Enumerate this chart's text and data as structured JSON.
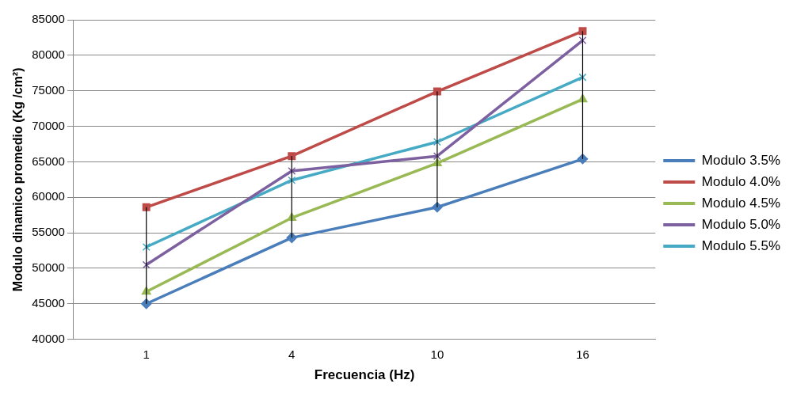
{
  "chart_data": {
    "type": "line",
    "xlabel": "Frecuencia (Hz)",
    "ylabel": "Modulo dinamico promedio (Kg /cm²)",
    "categories": [
      "1",
      "4",
      "10",
      "16"
    ],
    "ylim": [
      40000,
      85000
    ],
    "yticks": [
      40000,
      45000,
      50000,
      55000,
      60000,
      65000,
      70000,
      75000,
      80000,
      85000
    ],
    "grid": "y",
    "legend": "right",
    "series": [
      {
        "name": "Modulo 3.5%",
        "color": "#4a7ebb",
        "marker": "diamond",
        "values": [
          45000,
          54300,
          58600,
          65400
        ],
        "errors": [
          [
            45000,
            58600
          ],
          [
            54300,
            65800
          ],
          [
            58600,
            74900
          ],
          [
            65400,
            83400
          ]
        ]
      },
      {
        "name": "Modulo 4.0%",
        "color": "#be4b48",
        "marker": "square",
        "values": [
          58600,
          65800,
          74900,
          83400
        ]
      },
      {
        "name": "Modulo 4.5%",
        "color": "#98b954",
        "marker": "triangle",
        "values": [
          46700,
          57100,
          64800,
          73800
        ]
      },
      {
        "name": "Modulo 5.0%",
        "color": "#7d60a0",
        "marker": "cross",
        "values": [
          50500,
          63700,
          65800,
          82100
        ]
      },
      {
        "name": "Modulo 5.5%",
        "color": "#46aac5",
        "marker": "cross",
        "values": [
          53000,
          62400,
          67800,
          76900
        ]
      }
    ]
  }
}
